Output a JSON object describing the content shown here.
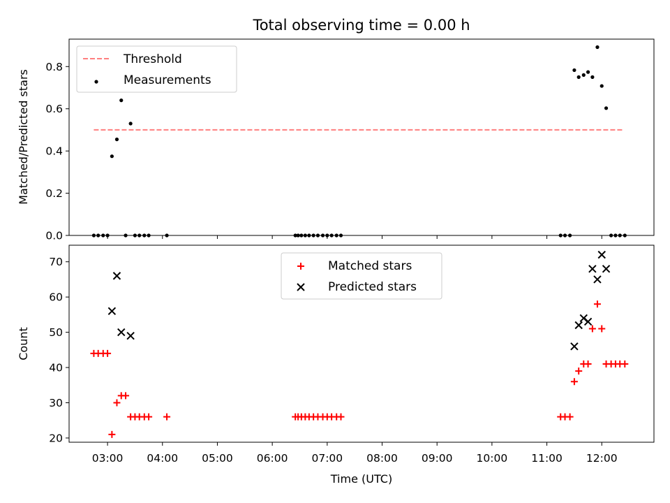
{
  "chart_data": {
    "title": "Total observing time = 0.00 h",
    "xlabel": "Time (UTC)",
    "x_unit": "hours UTC",
    "xlim": [
      2.3,
      12.95
    ],
    "x_ticks": [
      {
        "value": 3,
        "label": "03:00"
      },
      {
        "value": 4,
        "label": "04:00"
      },
      {
        "value": 5,
        "label": "05:00"
      },
      {
        "value": 6,
        "label": "06:00"
      },
      {
        "value": 7,
        "label": "07:00"
      },
      {
        "value": 8,
        "label": "08:00"
      },
      {
        "value": 9,
        "label": "09:00"
      },
      {
        "value": 10,
        "label": "10:00"
      },
      {
        "value": 11,
        "label": "11:00"
      },
      {
        "value": 12,
        "label": "12:00"
      }
    ],
    "panels": [
      {
        "type": "scatter",
        "ylabel": "Matched/Predicted stars",
        "ylim": [
          0,
          0.93
        ],
        "y_ticks": [
          {
            "value": 0.0,
            "label": "0.0"
          },
          {
            "value": 0.2,
            "label": "0.2"
          },
          {
            "value": 0.4,
            "label": "0.4"
          },
          {
            "value": 0.6,
            "label": "0.6"
          },
          {
            "value": 0.8,
            "label": "0.8"
          }
        ],
        "legend": {
          "placement": "upper-left",
          "items": [
            {
              "label": "Threshold",
              "series": "threshold"
            },
            {
              "label": "Measurements",
              "series": "measurements"
            }
          ]
        },
        "series": [
          {
            "name": "Threshold",
            "key": "threshold",
            "type": "line",
            "style": "dashed",
            "color": "#ff7f7f",
            "x": [
              2.75,
              12.4
            ],
            "y": [
              0.5,
              0.5
            ]
          },
          {
            "name": "Measurements",
            "key": "measurements",
            "type": "scatter",
            "marker": "dot",
            "color": "#000000",
            "x": [
              2.75,
              2.83,
              2.92,
              3.0,
              3.08,
              3.17,
              3.25,
              3.33,
              3.42,
              3.5,
              3.58,
              3.67,
              3.75,
              4.08,
              6.42,
              6.47,
              6.53,
              6.6,
              6.67,
              6.75,
              6.83,
              6.92,
              7.0,
              7.08,
              7.17,
              7.25,
              11.25,
              11.33,
              11.42,
              11.5,
              11.58,
              11.67,
              11.75,
              11.83,
              11.92,
              12.0,
              12.08,
              12.17,
              12.25,
              12.33,
              12.42
            ],
            "y": [
              0,
              0,
              0,
              0,
              0.375,
              0.455,
              0.64,
              0,
              0.53,
              0,
              0,
              0,
              0,
              0,
              0,
              0,
              0,
              0,
              0,
              0,
              0,
              0,
              0,
              0,
              0,
              0,
              0,
              0,
              0,
              0.783,
              0.75,
              0.76,
              0.774,
              0.75,
              0.892,
              0.708,
              0.603,
              0,
              0,
              0,
              0
            ]
          }
        ]
      },
      {
        "type": "scatter",
        "ylabel": "Count",
        "ylim": [
          18.8,
          74.7
        ],
        "y_ticks": [
          {
            "value": 20,
            "label": "20"
          },
          {
            "value": 30,
            "label": "30"
          },
          {
            "value": 40,
            "label": "40"
          },
          {
            "value": 50,
            "label": "50"
          },
          {
            "value": 60,
            "label": "60"
          },
          {
            "value": 70,
            "label": "70"
          }
        ],
        "legend": {
          "placement": "upper-center",
          "items": [
            {
              "label": "Matched stars",
              "series": "matched"
            },
            {
              "label": "Predicted stars",
              "series": "predicted"
            }
          ]
        },
        "series": [
          {
            "name": "Matched stars",
            "key": "matched",
            "type": "scatter",
            "marker": "plus",
            "color": "#ff0000",
            "x": [
              2.75,
              2.83,
              2.92,
              3.0,
              3.08,
              3.17,
              3.25,
              3.33,
              3.42,
              3.5,
              3.58,
              3.67,
              3.75,
              4.08,
              6.42,
              6.47,
              6.53,
              6.6,
              6.67,
              6.75,
              6.83,
              6.92,
              7.0,
              7.08,
              7.17,
              7.25,
              11.25,
              11.33,
              11.42,
              11.5,
              11.58,
              11.67,
              11.75,
              11.83,
              11.92,
              12.0,
              12.08,
              12.17,
              12.25,
              12.33,
              12.42
            ],
            "y": [
              44,
              44,
              44,
              44,
              21,
              30,
              32,
              32,
              26,
              26,
              26,
              26,
              26,
              26,
              26,
              26,
              26,
              26,
              26,
              26,
              26,
              26,
              26,
              26,
              26,
              26,
              26,
              26,
              26,
              36,
              39,
              41,
              41,
              51,
              58,
              51,
              41,
              41,
              41,
              41,
              41
            ]
          },
          {
            "name": "Predicted stars",
            "key": "predicted",
            "type": "scatter",
            "marker": "x",
            "color": "#000000",
            "x": [
              3.08,
              3.17,
              3.25,
              3.42,
              11.5,
              11.58,
              11.67,
              11.75,
              11.83,
              11.92,
              12.0,
              12.08
            ],
            "y": [
              56,
              66,
              50,
              49,
              46,
              52,
              54,
              53,
              68,
              65,
              72,
              68
            ]
          }
        ]
      }
    ]
  }
}
